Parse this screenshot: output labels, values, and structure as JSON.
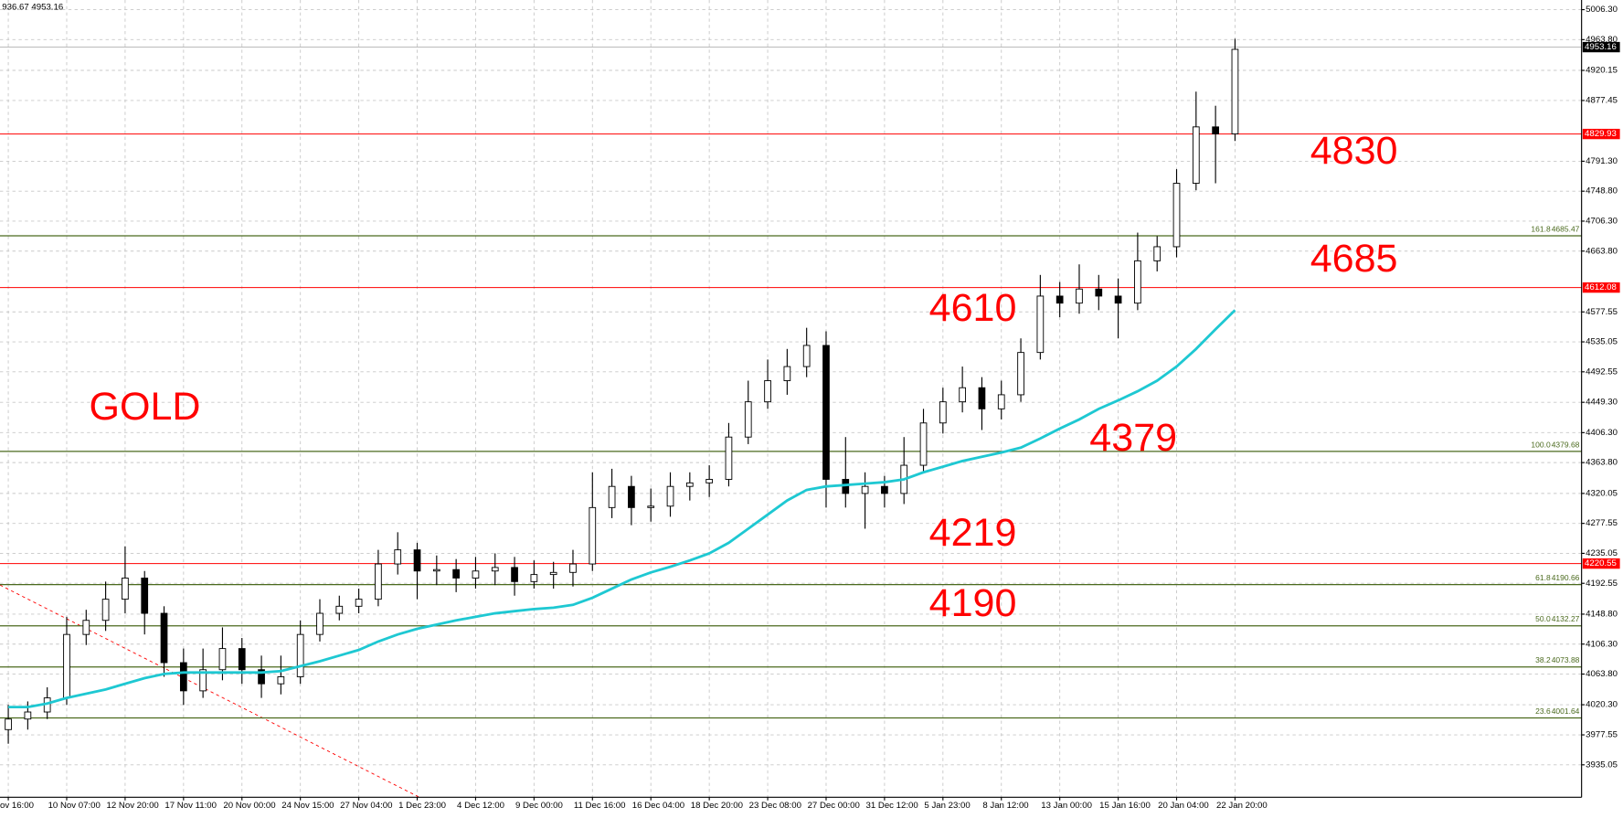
{
  "chart_data": {
    "type": "candlestick",
    "info_text": "936.67 4953.16",
    "categories": [
      "ov 16:00",
      null,
      null,
      "10 Nov 07:00",
      null,
      null,
      "12 Nov 20:00",
      null,
      null,
      "17 Nov 11:00",
      null,
      null,
      "20 Nov 00:00",
      null,
      null,
      "24 Nov 15:00",
      null,
      null,
      "27 Nov 04:00",
      null,
      null,
      "1 Dec 23:00",
      null,
      null,
      "4 Dec 12:00",
      null,
      null,
      "9 Dec 00:00",
      null,
      null,
      "11 Dec 16:00",
      null,
      null,
      "16 Dec 04:00",
      null,
      null,
      "18 Dec 20:00",
      null,
      null,
      "23 Dec 08:00",
      null,
      null,
      "27 Dec 00:00",
      null,
      null,
      "31 Dec 12:00",
      null,
      null,
      "5 Jan 23:00",
      null,
      null,
      "8 Jan 12:00",
      null,
      null,
      "13 Jan 00:00",
      null,
      null,
      "15 Jan 16:00",
      null,
      null,
      "20 Jan 04:00",
      null,
      null,
      "22 Jan 20:00"
    ],
    "open": [
      3985,
      4000,
      4010,
      4030,
      4120,
      4140,
      4170,
      4200,
      4150,
      4080,
      4040,
      4070,
      4100,
      4070,
      4050,
      4060,
      4120,
      4150,
      4160,
      4170,
      4220,
      4240,
      4210,
      4212,
      4200,
      4210,
      4215,
      4195,
      4205,
      4208,
      4220,
      4300,
      4330,
      4300,
      4302,
      4330,
      4335,
      4340,
      4400,
      4450,
      4480,
      4500,
      4530,
      4340,
      4320,
      4330,
      4320,
      4360,
      4420,
      4450,
      4470,
      4440,
      4460,
      4520,
      4600,
      4590,
      4610,
      4600,
      4590,
      4650,
      4670,
      4760,
      4840,
      4830
    ],
    "high": [
      4020,
      4025,
      4045,
      4145,
      4155,
      4195,
      4245,
      4210,
      4160,
      4100,
      4100,
      4130,
      4115,
      4090,
      4090,
      4140,
      4170,
      4175,
      4185,
      4240,
      4265,
      4250,
      4232,
      4227,
      4230,
      4235,
      4230,
      4225,
      4223,
      4240,
      4350,
      4355,
      4345,
      4327,
      4350,
      4350,
      4360,
      4420,
      4480,
      4510,
      4525,
      4555,
      4550,
      4400,
      4350,
      4345,
      4400,
      4440,
      4470,
      4500,
      4485,
      4480,
      4540,
      4630,
      4620,
      4645,
      4630,
      4625,
      4690,
      4685,
      4780,
      4890,
      4870,
      4965
    ],
    "low": [
      3965,
      3985,
      4000,
      4020,
      4105,
      4125,
      4150,
      4120,
      4060,
      4020,
      4030,
      4055,
      4050,
      4030,
      4035,
      4050,
      4110,
      4140,
      4150,
      4160,
      4205,
      4170,
      4190,
      4180,
      4185,
      4190,
      4175,
      4185,
      4185,
      4188,
      4210,
      4285,
      4275,
      4280,
      4287,
      4310,
      4315,
      4330,
      4390,
      4440,
      4460,
      4485,
      4300,
      4300,
      4270,
      4300,
      4305,
      4350,
      4405,
      4435,
      4410,
      4425,
      4450,
      4510,
      4570,
      4575,
      4580,
      4540,
      4580,
      4635,
      4655,
      4750,
      4760,
      4820
    ],
    "close": [
      4000,
      4010,
      4030,
      4120,
      4140,
      4170,
      4200,
      4150,
      4080,
      4040,
      4070,
      4100,
      4070,
      4050,
      4060,
      4120,
      4150,
      4160,
      4170,
      4220,
      4240,
      4210,
      4212,
      4200,
      4210,
      4215,
      4195,
      4205,
      4208,
      4220,
      4300,
      4330,
      4300,
      4302,
      4330,
      4335,
      4340,
      4400,
      4450,
      4480,
      4500,
      4530,
      4340,
      4320,
      4330,
      4320,
      4360,
      4420,
      4450,
      4470,
      4440,
      4460,
      4520,
      4600,
      4590,
      4610,
      4600,
      4590,
      4650,
      4670,
      4760,
      4840,
      4830,
      4950
    ],
    "ma": {
      "color": "#1ec8d2",
      "values": [
        4017,
        4017,
        4022,
        4030,
        4036,
        4042,
        4050,
        4058,
        4064,
        4066,
        4066,
        4066,
        4066,
        4066,
        4068,
        4075,
        4082,
        4090,
        4098,
        4110,
        4120,
        4128,
        4134,
        4140,
        4145,
        4150,
        4153,
        4156,
        4158,
        4162,
        4172,
        4185,
        4198,
        4208,
        4216,
        4225,
        4235,
        4250,
        4270,
        4290,
        4310,
        4325,
        4330,
        4332,
        4334,
        4336,
        4340,
        4350,
        4358,
        4366,
        4372,
        4378,
        4385,
        4398,
        4412,
        4425,
        4440,
        4452,
        4465,
        4480,
        4500,
        4525,
        4553,
        4580
      ]
    },
    "ylim": [
      3889,
      5020
    ],
    "yticks": [
      {
        "value": 5006.3,
        "label": "5006.30"
      },
      {
        "value": 4963.8,
        "label": "4963.80"
      },
      {
        "value": 4920.15,
        "label": "4920.15"
      },
      {
        "value": 4877.45,
        "label": "4877.45"
      },
      {
        "value": 4791.3,
        "label": "4791.30"
      },
      {
        "value": 4748.8,
        "label": "4748.80"
      },
      {
        "value": 4706.3,
        "label": "4706.30"
      },
      {
        "value": 4663.8,
        "label": "4663.80"
      },
      {
        "value": 4577.55,
        "label": "4577.55"
      },
      {
        "value": 4535.05,
        "label": "4535.05"
      },
      {
        "value": 4492.55,
        "label": "4492.55"
      },
      {
        "value": 4449.3,
        "label": "4449.30"
      },
      {
        "value": 4406.3,
        "label": "4406.30"
      },
      {
        "value": 4363.8,
        "label": "4363.80"
      },
      {
        "value": 4320.05,
        "label": "4320.05"
      },
      {
        "value": 4277.55,
        "label": "4277.55"
      },
      {
        "value": 4235.05,
        "label": "4235.05"
      },
      {
        "value": 4192.55,
        "label": "4192.55"
      },
      {
        "value": 4148.8,
        "label": "4148.80"
      },
      {
        "value": 4106.3,
        "label": "4106.30"
      },
      {
        "value": 4063.8,
        "label": "4063.80"
      },
      {
        "value": 4020.3,
        "label": "4020.30"
      },
      {
        "value": 3977.55,
        "label": "3977.55"
      },
      {
        "value": 3935.05,
        "label": "3935.05"
      }
    ],
    "grid": true,
    "bull_color": "#ffffff",
    "bear_color": "#000000",
    "price_line": {
      "value": 4953.16,
      "color": "#000000"
    },
    "red_levels": {
      "color": "#ff0000",
      "values": [
        4829.93,
        4612.08,
        4220.55
      ]
    },
    "fib_levels": {
      "color": "#4b6a1e",
      "ratios": [
        "161.8",
        "100.0",
        "61.8",
        "50.0",
        "38.2",
        "23.6"
      ],
      "values": [
        4685.47,
        4379.68,
        4190.66,
        4132.27,
        4073.88,
        4001.64
      ]
    },
    "annotations": {
      "color": "#ff0000",
      "texts": [
        "GOLD",
        "4830",
        "4685",
        "4610",
        "4379",
        "4219",
        "4190"
      ]
    }
  }
}
